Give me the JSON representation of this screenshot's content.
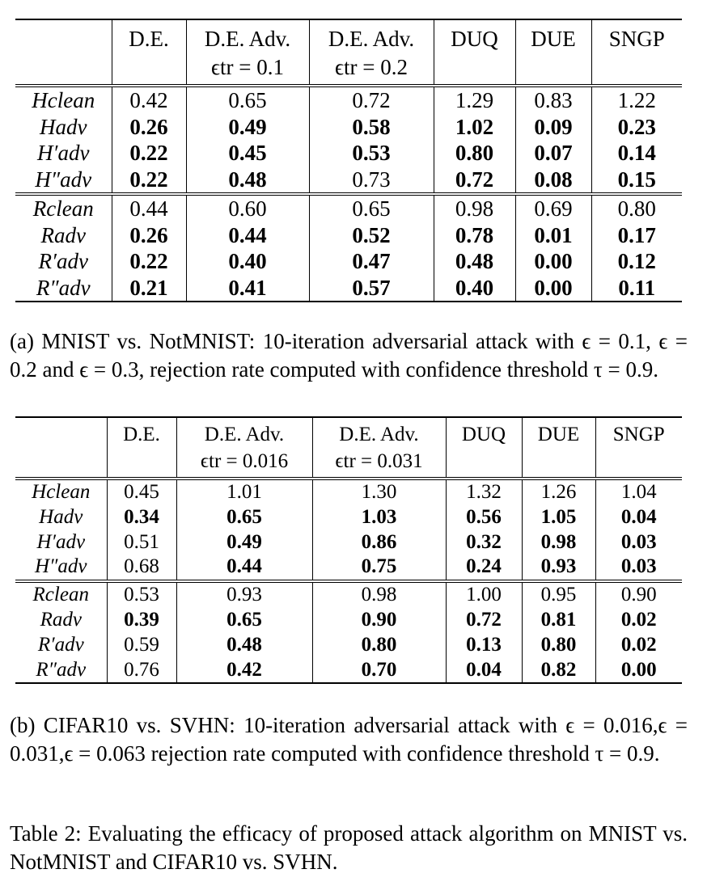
{
  "table_a": {
    "headers": [
      {
        "line1": "D.E.",
        "line2": ""
      },
      {
        "line1": "D.E. Adv.",
        "line2": "ϵtr = 0.1"
      },
      {
        "line1": "D.E. Adv.",
        "line2": "ϵtr = 0.2"
      },
      {
        "line1": "DUQ",
        "line2": ""
      },
      {
        "line1": "DUE",
        "line2": ""
      },
      {
        "line1": "SNGP",
        "line2": ""
      }
    ],
    "rows": [
      {
        "label": "Hclean",
        "values": [
          "0.42",
          "0.65",
          "0.72",
          "1.29",
          "0.83",
          "1.22"
        ],
        "bold": [
          false,
          false,
          false,
          false,
          false,
          false
        ]
      },
      {
        "label": "Hadv",
        "values": [
          "0.26",
          "0.49",
          "0.58",
          "1.02",
          "0.09",
          "0.23"
        ],
        "bold": [
          true,
          true,
          true,
          true,
          true,
          true
        ]
      },
      {
        "label": "H′adv",
        "values": [
          "0.22",
          "0.45",
          "0.53",
          "0.80",
          "0.07",
          "0.14"
        ],
        "bold": [
          true,
          true,
          true,
          true,
          true,
          true
        ]
      },
      {
        "label": "H″adv",
        "values": [
          "0.22",
          "0.48",
          "0.73",
          "0.72",
          "0.08",
          "0.15"
        ],
        "bold": [
          true,
          true,
          false,
          true,
          true,
          true
        ]
      },
      {
        "label": "Rclean",
        "values": [
          "0.44",
          "0.60",
          "0.65",
          "0.98",
          "0.69",
          "0.80"
        ],
        "bold": [
          false,
          false,
          false,
          false,
          false,
          false
        ]
      },
      {
        "label": "Radv",
        "values": [
          "0.26",
          "0.44",
          "0.52",
          "0.78",
          "0.01",
          "0.17"
        ],
        "bold": [
          true,
          true,
          true,
          true,
          true,
          true
        ]
      },
      {
        "label": "R′adv",
        "values": [
          "0.22",
          "0.40",
          "0.47",
          "0.48",
          "0.00",
          "0.12"
        ],
        "bold": [
          true,
          true,
          true,
          true,
          true,
          true
        ]
      },
      {
        "label": "R″adv",
        "values": [
          "0.21",
          "0.41",
          "0.57",
          "0.40",
          "0.00",
          "0.11"
        ],
        "bold": [
          true,
          true,
          true,
          true,
          true,
          true
        ]
      }
    ],
    "caption": "(a) MNIST vs. NotMNIST: 10-iteration adversarial attack with ϵ = 0.1, ϵ = 0.2 and ϵ = 0.3, rejection rate computed with confidence threshold τ = 0.9."
  },
  "table_b": {
    "headers": [
      {
        "line1": "D.E.",
        "line2": ""
      },
      {
        "line1": "D.E. Adv.",
        "line2": "ϵtr = 0.016"
      },
      {
        "line1": "D.E. Adv.",
        "line2": "ϵtr = 0.031"
      },
      {
        "line1": "DUQ",
        "line2": ""
      },
      {
        "line1": "DUE",
        "line2": ""
      },
      {
        "line1": "SNGP",
        "line2": ""
      }
    ],
    "rows": [
      {
        "label": "Hclean",
        "values": [
          "0.45",
          "1.01",
          "1.30",
          "1.32",
          "1.26",
          "1.04"
        ],
        "bold": [
          false,
          false,
          false,
          false,
          false,
          false
        ]
      },
      {
        "label": "Hadv",
        "values": [
          "0.34",
          "0.65",
          "1.03",
          "0.56",
          "1.05",
          "0.04"
        ],
        "bold": [
          true,
          true,
          true,
          true,
          true,
          true
        ]
      },
      {
        "label": "H′adv",
        "values": [
          "0.51",
          "0.49",
          "0.86",
          "0.32",
          "0.98",
          "0.03"
        ],
        "bold": [
          false,
          true,
          true,
          true,
          true,
          true
        ]
      },
      {
        "label": "H″adv",
        "values": [
          "0.68",
          "0.44",
          "0.75",
          "0.24",
          "0.93",
          "0.03"
        ],
        "bold": [
          false,
          true,
          true,
          true,
          true,
          true
        ]
      },
      {
        "label": "Rclean",
        "values": [
          "0.53",
          "0.93",
          "0.98",
          "1.00",
          "0.95",
          "0.90"
        ],
        "bold": [
          false,
          false,
          false,
          false,
          false,
          false
        ]
      },
      {
        "label": "Radv",
        "values": [
          "0.39",
          "0.65",
          "0.90",
          "0.72",
          "0.81",
          "0.02"
        ],
        "bold": [
          true,
          true,
          true,
          true,
          true,
          true
        ]
      },
      {
        "label": "R′adv",
        "values": [
          "0.59",
          "0.48",
          "0.80",
          "0.13",
          "0.80",
          "0.02"
        ],
        "bold": [
          false,
          true,
          true,
          true,
          true,
          true
        ]
      },
      {
        "label": "R″adv",
        "values": [
          "0.76",
          "0.42",
          "0.70",
          "0.04",
          "0.82",
          "0.00"
        ],
        "bold": [
          false,
          true,
          true,
          true,
          true,
          true
        ]
      }
    ],
    "caption": "(b) CIFAR10 vs. SVHN: 10-iteration adversarial attack with ϵ = 0.016,ϵ = 0.031,ϵ = 0.063 rejection rate computed with confidence threshold τ = 0.9."
  },
  "table_caption": "Table 2: Evaluating the efficacy of proposed attack algorithm on MNIST vs. NotMNIST and CIFAR10 vs. SVHN."
}
